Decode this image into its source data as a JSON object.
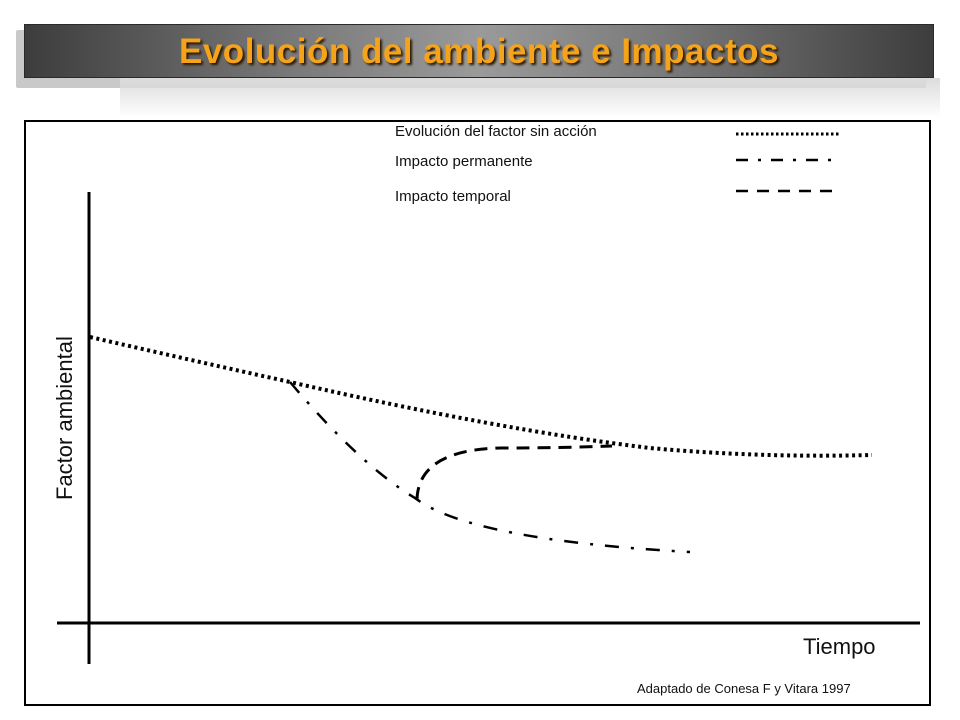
{
  "header": {
    "title": "Evolución del ambiente e Impactos"
  },
  "legend": {
    "items": [
      {
        "label": "Evolución del factor sin acción",
        "style": "dotted"
      },
      {
        "label": "Impacto permanente",
        "style": "dash-dot"
      },
      {
        "label": "Impacto temporal",
        "style": "dashed"
      }
    ]
  },
  "axes": {
    "x_label": "Tiempo",
    "y_label": "Factor  ambiental"
  },
  "source": "Adaptado de Conesa F y Vitara 1997",
  "colors": {
    "title_text": "#f5a31a",
    "line": "#000000"
  }
}
